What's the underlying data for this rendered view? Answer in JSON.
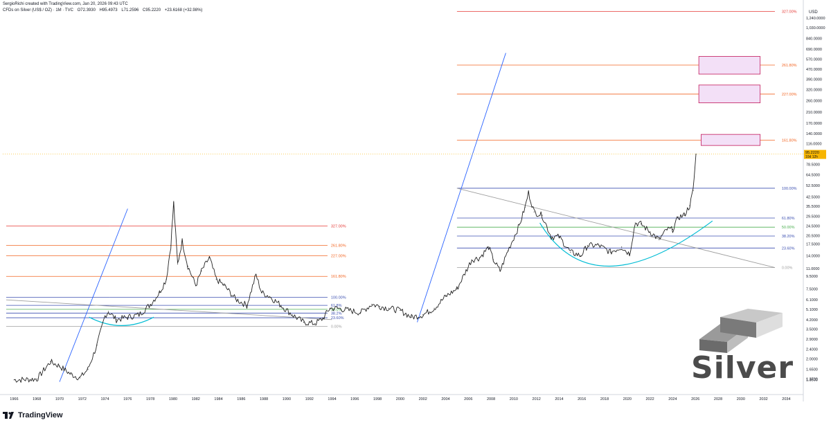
{
  "header": {
    "author_line": "SergioRichi created with TradingView.com, Jan 20, 2026 09:43 UTC",
    "symbol": "CFDs on Silver (US$ / OZ) · 1M · TVC",
    "open": "O72.3930",
    "high": "H95.4973",
    "low": "L71.2596",
    "close": "C95.2220",
    "change": "+23.6168 (+32.98%)"
  },
  "currency": "USD",
  "brand": "TradingView",
  "watermark": "Silver",
  "colors": {
    "fib_100": "#3b4fb0",
    "fib_618": "#3b4fb0",
    "fib_50": "#4caf50",
    "fib_0": "#9e9e9e",
    "fib_ext": "#f26522",
    "fib_327": "#e53935",
    "trend_blue": "#2962ff",
    "cup_cyan": "#00bcd4",
    "box_fill": "#f3e0f7",
    "box_stroke": "#c2185b",
    "price_badge": "#f7b500",
    "candle": "#222222"
  },
  "chart_data": {
    "type": "line",
    "title": "CFDs on Silver (US$ / OZ) · 1M · TVC",
    "y_scale": "log",
    "ylim": [
      1.05,
      1650
    ],
    "xlim": [
      1965.0,
      2035.5
    ],
    "y_ticks": [
      1.35,
      1.37,
      1.65,
      2.0,
      2.4,
      2.9,
      3.5,
      4.2,
      5.1,
      6.1,
      7.5,
      9.5,
      11.0,
      14.0,
      17.5,
      20.5,
      24.5,
      29.5,
      35.5,
      42.5,
      52.5,
      64.5,
      78.5,
      95.222,
      116.0,
      140.0,
      170.0,
      210.0,
      260.0,
      320.0,
      390.0,
      470.0,
      570.0,
      690.0,
      840.0,
      1030.0,
      1240.0
    ],
    "y_tick_labels": [
      "1.3500",
      "1.3700",
      "1.6500",
      "2.0000",
      "2.4000",
      "2.9000",
      "3.5000",
      "4.2000",
      "5.1000",
      "6.1000",
      "7.5000",
      "9.5000",
      "11.0000",
      "14.0000",
      "17.5000",
      "20.5000",
      "24.5000",
      "29.5000",
      "35.5000",
      "42.5000",
      "52.5000",
      "64.5000",
      "78.5000",
      "95.2220",
      "116.0000",
      "140.0000",
      "170.0000",
      "210.0000",
      "260.0000",
      "320.0000",
      "390.0000",
      "470.0000",
      "570.0000",
      "690.0000",
      "840.0000",
      "1,030.0000",
      "1,240.0000"
    ],
    "x_ticks": [
      1966,
      1968,
      1970,
      1972,
      1974,
      1976,
      1978,
      1980,
      1982,
      1984,
      1986,
      1988,
      1990,
      1992,
      1994,
      1996,
      1998,
      2000,
      2002,
      2004,
      2006,
      2008,
      2010,
      2012,
      2014,
      2016,
      2018,
      2020,
      2022,
      2024,
      2026,
      2028,
      2030,
      2032,
      2034
    ],
    "x_tick_labels": [
      "1966",
      "1968",
      "1970",
      "1972",
      "1974",
      "1976",
      "1978",
      "1980",
      "1982",
      "1984",
      "1986",
      "1988",
      "1990",
      "1992",
      "1994",
      "1996",
      "1998",
      "2000",
      "2002",
      "2004",
      "2006",
      "2008",
      "2010",
      "2012",
      "2014",
      "2016",
      "2018",
      "2020",
      "2022",
      "2024",
      "2026",
      "2028",
      "2030",
      "2032",
      "2034"
    ],
    "last_price": 95.222,
    "last_price_label": "95.2220",
    "countdown_label": "10d 12h",
    "series": [
      {
        "kind": "monthly-close",
        "x": [
          1966.0,
          1968.0,
          1969.2,
          1970.0,
          1971.0,
          1971.8,
          1972.5,
          1973.3,
          1974.0,
          1974.3,
          1975.0,
          1976.0,
          1977.0,
          1978.0,
          1978.8,
          1979.4,
          1979.8,
          1980.05,
          1980.4,
          1980.8,
          1981.3,
          1982.0,
          1982.5,
          1983.2,
          1983.8,
          1984.5,
          1985.5,
          1986.5,
          1987.3,
          1987.8,
          1988.5,
          1989.5,
          1990.5,
          1991.5,
          1992.5,
          1993.2,
          1993.8,
          1994.5,
          1995.5,
          1996.5,
          1997.5,
          1998.2,
          1999.0,
          2000.0,
          2001.0,
          2002.0,
          2003.0,
          2004.0,
          2005.0,
          2006.3,
          2007.0,
          2007.8,
          2008.2,
          2008.8,
          2009.5,
          2010.5,
          2011.0,
          2011.3,
          2011.8,
          2012.5,
          2013.3,
          2014.0,
          2015.0,
          2015.9,
          2016.5,
          2017.5,
          2018.5,
          2019.5,
          2020.2,
          2020.7,
          2021.2,
          2022.0,
          2022.8,
          2023.5,
          2024.0,
          2024.5,
          2025.0,
          2025.5,
          2025.8,
          2026.05
        ],
        "y": [
          1.35,
          1.37,
          1.9,
          1.75,
          1.5,
          1.4,
          1.65,
          2.6,
          4.5,
          4.9,
          4.2,
          4.4,
          4.6,
          5.6,
          7.0,
          9.0,
          17.0,
          38.0,
          12.0,
          18.5,
          11.5,
          8.0,
          10.5,
          13.5,
          9.0,
          8.0,
          6.2,
          5.5,
          9.8,
          7.0,
          6.5,
          5.5,
          4.6,
          4.0,
          3.9,
          4.3,
          5.2,
          5.2,
          5.0,
          4.8,
          5.6,
          5.4,
          5.2,
          5.0,
          4.4,
          4.6,
          5.2,
          6.5,
          7.5,
          13.0,
          13.5,
          16.5,
          13.0,
          10.5,
          15.5,
          25.0,
          35.0,
          46.0,
          32.0,
          30.0,
          20.0,
          20.0,
          15.0,
          14.0,
          17.0,
          17.0,
          15.0,
          16.5,
          14.5,
          26.0,
          25.5,
          22.0,
          19.0,
          23.0,
          23.0,
          29.0,
          30.0,
          36.0,
          48.0,
          95.222
        ]
      }
    ],
    "fib_levels_1970s": [
      {
        "label": "327.00%",
        "value": 24.5,
        "color": "fib_327"
      },
      {
        "label": "261.80%",
        "value": 17.0,
        "color": "fib_ext"
      },
      {
        "label": "227.00%",
        "value": 14.0,
        "color": "fib_ext"
      },
      {
        "label": "161.80%",
        "value": 9.5,
        "color": "fib_ext"
      },
      {
        "label": "100.00%",
        "value": 6.4,
        "color": "fib_100"
      },
      {
        "label": "61.8%",
        "value": 5.5,
        "color": "fib_618"
      },
      {
        "label": "50.0%",
        "value": 5.1,
        "color": "fib_50"
      },
      {
        "label": "38.2%",
        "value": 4.75,
        "color": "fib_618"
      },
      {
        "label": "23.60%",
        "value": 4.35,
        "color": "fib_618"
      },
      {
        "label": "0.00%",
        "value": 3.7,
        "color": "fib_0"
      }
    ],
    "fib_levels_2000s": [
      {
        "label": "327.00%",
        "value": 1400.0,
        "color": "fib_327"
      },
      {
        "label": "261.80%",
        "value": 510.0,
        "color": "fib_ext"
      },
      {
        "label": "227.00%",
        "value": 295.0,
        "color": "fib_ext"
      },
      {
        "label": "161.80%",
        "value": 124.0,
        "color": "fib_ext"
      },
      {
        "label": "100.00%",
        "value": 50.0,
        "color": "fib_100"
      },
      {
        "label": "61.80%",
        "value": 28.5,
        "color": "fib_618"
      },
      {
        "label": "50.00%",
        "value": 24.0,
        "color": "fib_50"
      },
      {
        "label": "38.20%",
        "value": 20.3,
        "color": "fib_618"
      },
      {
        "label": "23.60%",
        "value": 16.2,
        "color": "fib_618"
      },
      {
        "label": "0.00%",
        "value": 11.2,
        "color": "fib_0"
      }
    ],
    "target_zones": [
      {
        "label": "161.80%",
        "low": 112.0,
        "high": 138.0,
        "x_from": 2026.5,
        "x_to": 2031.7
      },
      {
        "label": "227.00%",
        "low": 250.0,
        "high": 350.0,
        "x_from": 2026.3,
        "x_to": 2031.7
      },
      {
        "label": "261.80%",
        "low": 430.0,
        "high": 600.0,
        "x_from": 2026.3,
        "x_to": 2031.7
      }
    ],
    "trendlines": [
      {
        "x": [
          1970.0,
          1976.0
        ],
        "y": [
          1.3,
          34.0
        ],
        "color": "trend_blue"
      },
      {
        "x": [
          2001.5,
          2009.3
        ],
        "y": [
          4.0,
          640.0
        ],
        "color": "trend_blue"
      },
      {
        "x": [
          1965.3,
          1994.0
        ],
        "y": [
          6.1,
          4.2
        ],
        "color": "fib_0"
      },
      {
        "x": [
          2005.0,
          2033.0
        ],
        "y": [
          50.0,
          11.2
        ],
        "color": "fib_0"
      }
    ],
    "grid": false,
    "legend": "none"
  }
}
